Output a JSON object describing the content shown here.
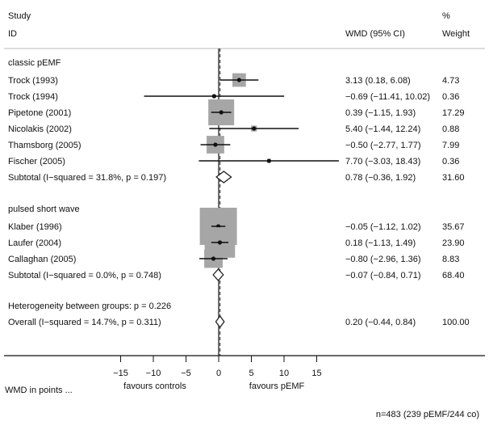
{
  "chart_data": {
    "type": "forest",
    "headers": {
      "study": "Study",
      "id": "ID",
      "wmd": "WMD (95% CI)",
      "weight_top": "%",
      "weight": "Weight"
    },
    "groups": [
      {
        "label": "classic pEMF",
        "studies": [
          {
            "name": "Trock (1993)",
            "est": 3.13,
            "lo": 0.18,
            "hi": 6.08,
            "ci_text": "3.13 (0.18, 6.08)",
            "weight": 4.73,
            "weight_text": "4.73"
          },
          {
            "name": "Trock (1994)",
            "est": -0.69,
            "lo": -11.41,
            "hi": 10.02,
            "ci_text": "−0.69 (−11.41, 10.02)",
            "weight": 0.36,
            "weight_text": "0.36"
          },
          {
            "name": "Pipetone (2001)",
            "est": 0.39,
            "lo": -1.15,
            "hi": 1.93,
            "ci_text": "0.39 (−1.15, 1.93)",
            "weight": 17.29,
            "weight_text": "17.29"
          },
          {
            "name": "Nicolakis (2002)",
            "est": 5.4,
            "lo": -1.44,
            "hi": 12.24,
            "ci_text": "5.40 (−1.44, 12.24)",
            "weight": 0.88,
            "weight_text": "0.88"
          },
          {
            "name": "Thamsborg (2005)",
            "est": -0.5,
            "lo": -2.77,
            "hi": 1.77,
            "ci_text": "−0.50 (−2.77, 1.77)",
            "weight": 7.99,
            "weight_text": "7.99"
          },
          {
            "name": "Fischer (2005)",
            "est": 7.7,
            "lo": -3.03,
            "hi": 18.43,
            "ci_text": "7.70 (−3.03, 18.43)",
            "weight": 0.36,
            "weight_text": "0.36"
          }
        ],
        "subtotal": {
          "label": "Subtotal  (I−squared = 31.8%, p = 0.197)",
          "est": 0.78,
          "lo": -0.36,
          "hi": 1.92,
          "ci_text": "0.78 (−0.36, 1.92)",
          "weight_text": "31.60"
        }
      },
      {
        "label": "pulsed short wave",
        "studies": [
          {
            "name": "Klaber (1996)",
            "est": -0.05,
            "lo": -1.12,
            "hi": 1.02,
            "ci_text": "−0.05 (−1.12, 1.02)",
            "weight": 35.67,
            "weight_text": "35.67"
          },
          {
            "name": "Laufer (2004)",
            "est": 0.18,
            "lo": -1.13,
            "hi": 1.49,
            "ci_text": "0.18 (−1.13, 1.49)",
            "weight": 23.9,
            "weight_text": "23.90"
          },
          {
            "name": "Callaghan (2005)",
            "est": -0.8,
            "lo": -2.96,
            "hi": 1.36,
            "ci_text": "−0.80 (−2.96, 1.36)",
            "weight": 8.83,
            "weight_text": "8.83"
          }
        ],
        "subtotal": {
          "label": "Subtotal  (I−squared = 0.0%, p = 0.748)",
          "est": -0.07,
          "lo": -0.84,
          "hi": 0.71,
          "ci_text": "−0.07 (−0.84, 0.71)",
          "weight_text": "68.40"
        }
      }
    ],
    "heterogeneity": "Heterogeneity between groups: p = 0.226",
    "overall": {
      "label": "Overall  (I−squared = 14.7%, p = 0.311)",
      "est": 0.2,
      "lo": -0.44,
      "hi": 0.84,
      "ci_text": "0.20 (−0.44, 0.84)",
      "weight_text": "100.00"
    },
    "x_ticks": [
      -15,
      -10,
      -5,
      0,
      5,
      10,
      15
    ],
    "x_tick_labels": [
      "−15",
      "−10",
      "−5",
      "0",
      "5",
      "10",
      "15"
    ],
    "xlabel": "WMD in points ...",
    "favours_left": "favours controls",
    "favours_right": "favours pEMF",
    "footnote": "n=483 (239 pEMF/244 co)"
  }
}
